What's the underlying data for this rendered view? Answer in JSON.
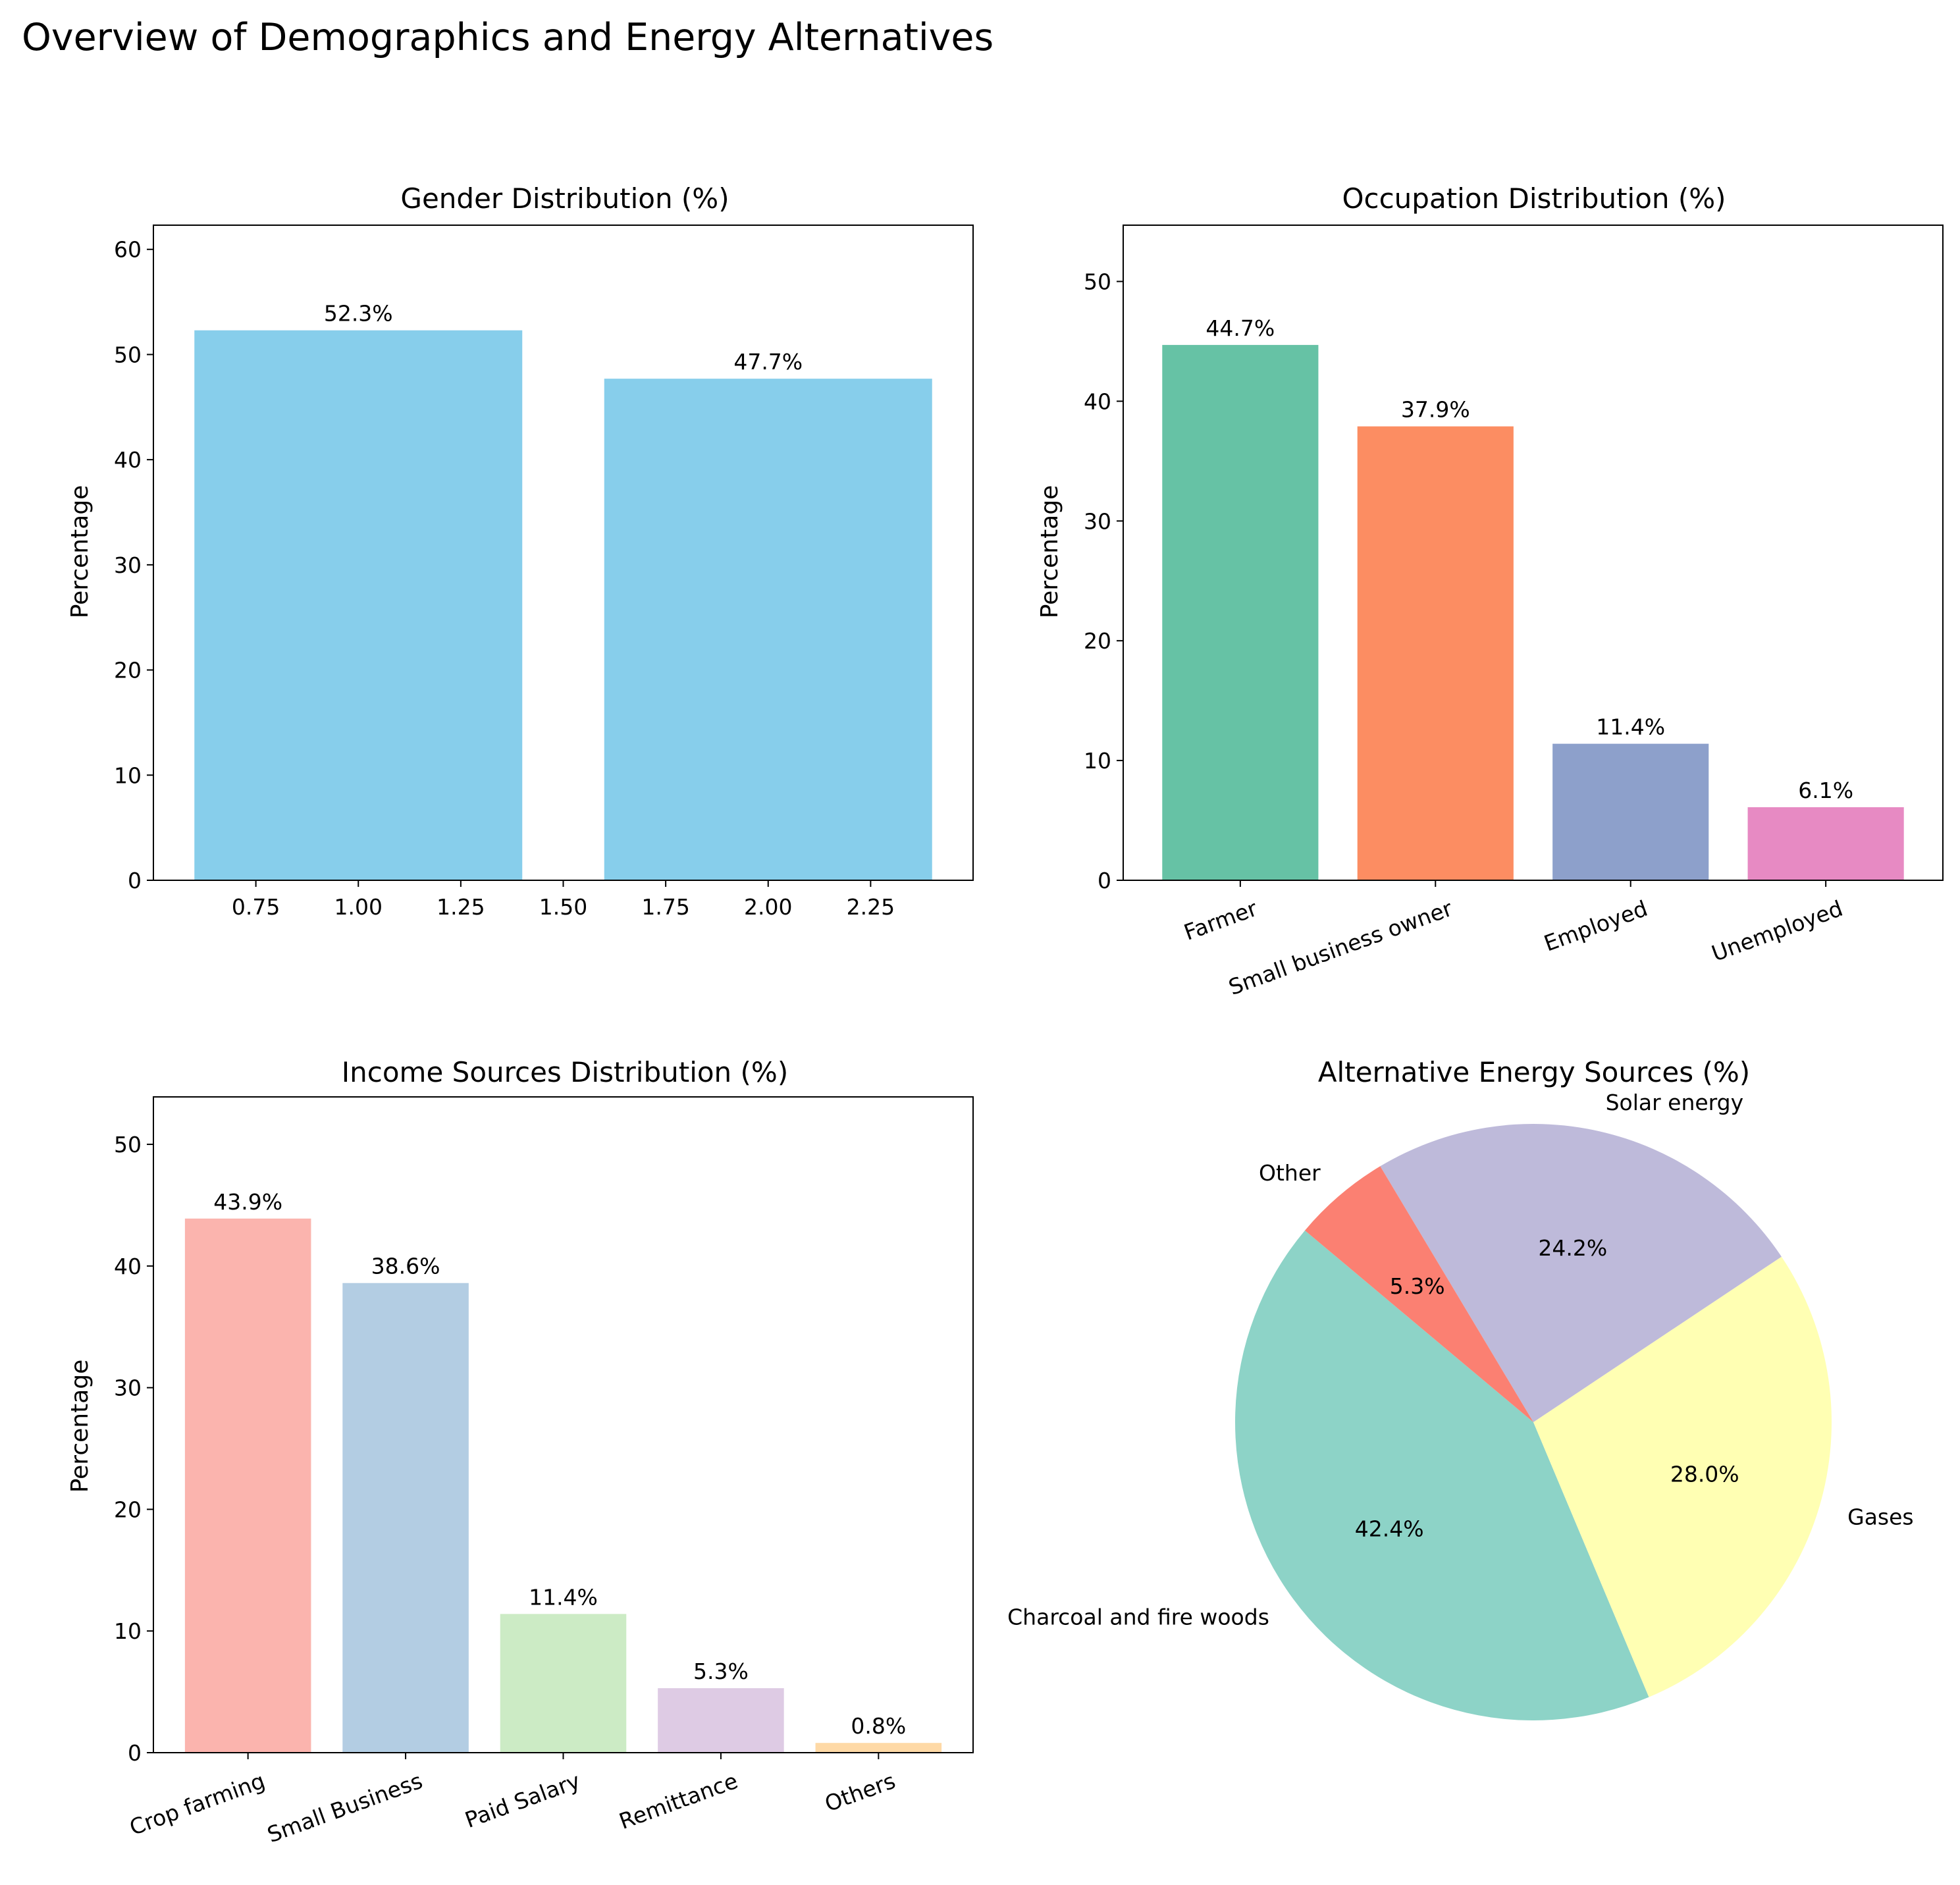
{
  "figure": {
    "title": "Overview of Demographics and Energy Alternatives"
  },
  "chart_data": [
    {
      "type": "bar",
      "title": "Gender Distribution (%)",
      "ylabel": "Percentage",
      "xlabel": "",
      "x": [
        1,
        2
      ],
      "values": [
        52.3,
        47.7
      ],
      "data_labels": [
        "52.3%",
        "47.7%"
      ],
      "xlim": [
        0.5,
        2.5
      ],
      "ylim": [
        0,
        62.3
      ],
      "xticks": [
        0.75,
        1.0,
        1.25,
        1.5,
        1.75,
        2.0,
        2.25
      ],
      "xtick_labels": [
        "0.75",
        "1.00",
        "1.25",
        "1.50",
        "1.75",
        "2.00",
        "2.25"
      ],
      "yticks": [
        0,
        10,
        20,
        30,
        40,
        50,
        60
      ],
      "ytick_labels": [
        "0",
        "10",
        "20",
        "30",
        "40",
        "50",
        "60"
      ],
      "colors": [
        "#87ceeb",
        "#87ceeb"
      ],
      "grid": false
    },
    {
      "type": "bar",
      "title": "Occupation Distribution (%)",
      "ylabel": "Percentage",
      "xlabel": "",
      "categories": [
        "Farmer",
        "Small business owner",
        "Employed",
        "Unemployed"
      ],
      "values": [
        44.7,
        37.9,
        11.4,
        6.1
      ],
      "data_labels": [
        "44.7%",
        "37.9%",
        "11.4%",
        "6.1%"
      ],
      "ylim": [
        0,
        54.7
      ],
      "yticks": [
        0,
        10,
        20,
        30,
        40,
        50
      ],
      "ytick_labels": [
        "0",
        "10",
        "20",
        "30",
        "40",
        "50"
      ],
      "colors": [
        "#66c2a5",
        "#fc8d62",
        "#8da0cb",
        "#e78ac3"
      ],
      "grid": false
    },
    {
      "type": "bar",
      "title": "Income Sources Distribution (%)",
      "ylabel": "Percentage",
      "xlabel": "",
      "categories": [
        "Crop farming",
        "Small Business",
        "Paid Salary",
        "Remittance",
        "Others"
      ],
      "values": [
        43.9,
        38.6,
        11.4,
        5.3,
        0.8
      ],
      "data_labels": [
        "43.9%",
        "38.6%",
        "11.4%",
        "5.3%",
        "0.8%"
      ],
      "ylim": [
        0,
        53.9
      ],
      "yticks": [
        0,
        10,
        20,
        30,
        40,
        50
      ],
      "ytick_labels": [
        "0",
        "10",
        "20",
        "30",
        "40",
        "50"
      ],
      "colors": [
        "#fbb4ae",
        "#b3cde3",
        "#ccebc5",
        "#decbe4",
        "#fed9a6"
      ],
      "grid": false
    },
    {
      "type": "pie",
      "title": "Alternative Energy Sources (%)",
      "categories": [
        "Charcoal and fire woods",
        "Gases",
        "Solar energy",
        "Other"
      ],
      "values": [
        42.4,
        28.0,
        24.2,
        5.3
      ],
      "data_labels": [
        "42.4%",
        "28.0%",
        "24.2%",
        "5.3%"
      ],
      "colors": [
        "#8dd3c7",
        "#ffffb3",
        "#bebada",
        "#fb8072"
      ],
      "start_angle_deg": 140
    }
  ]
}
